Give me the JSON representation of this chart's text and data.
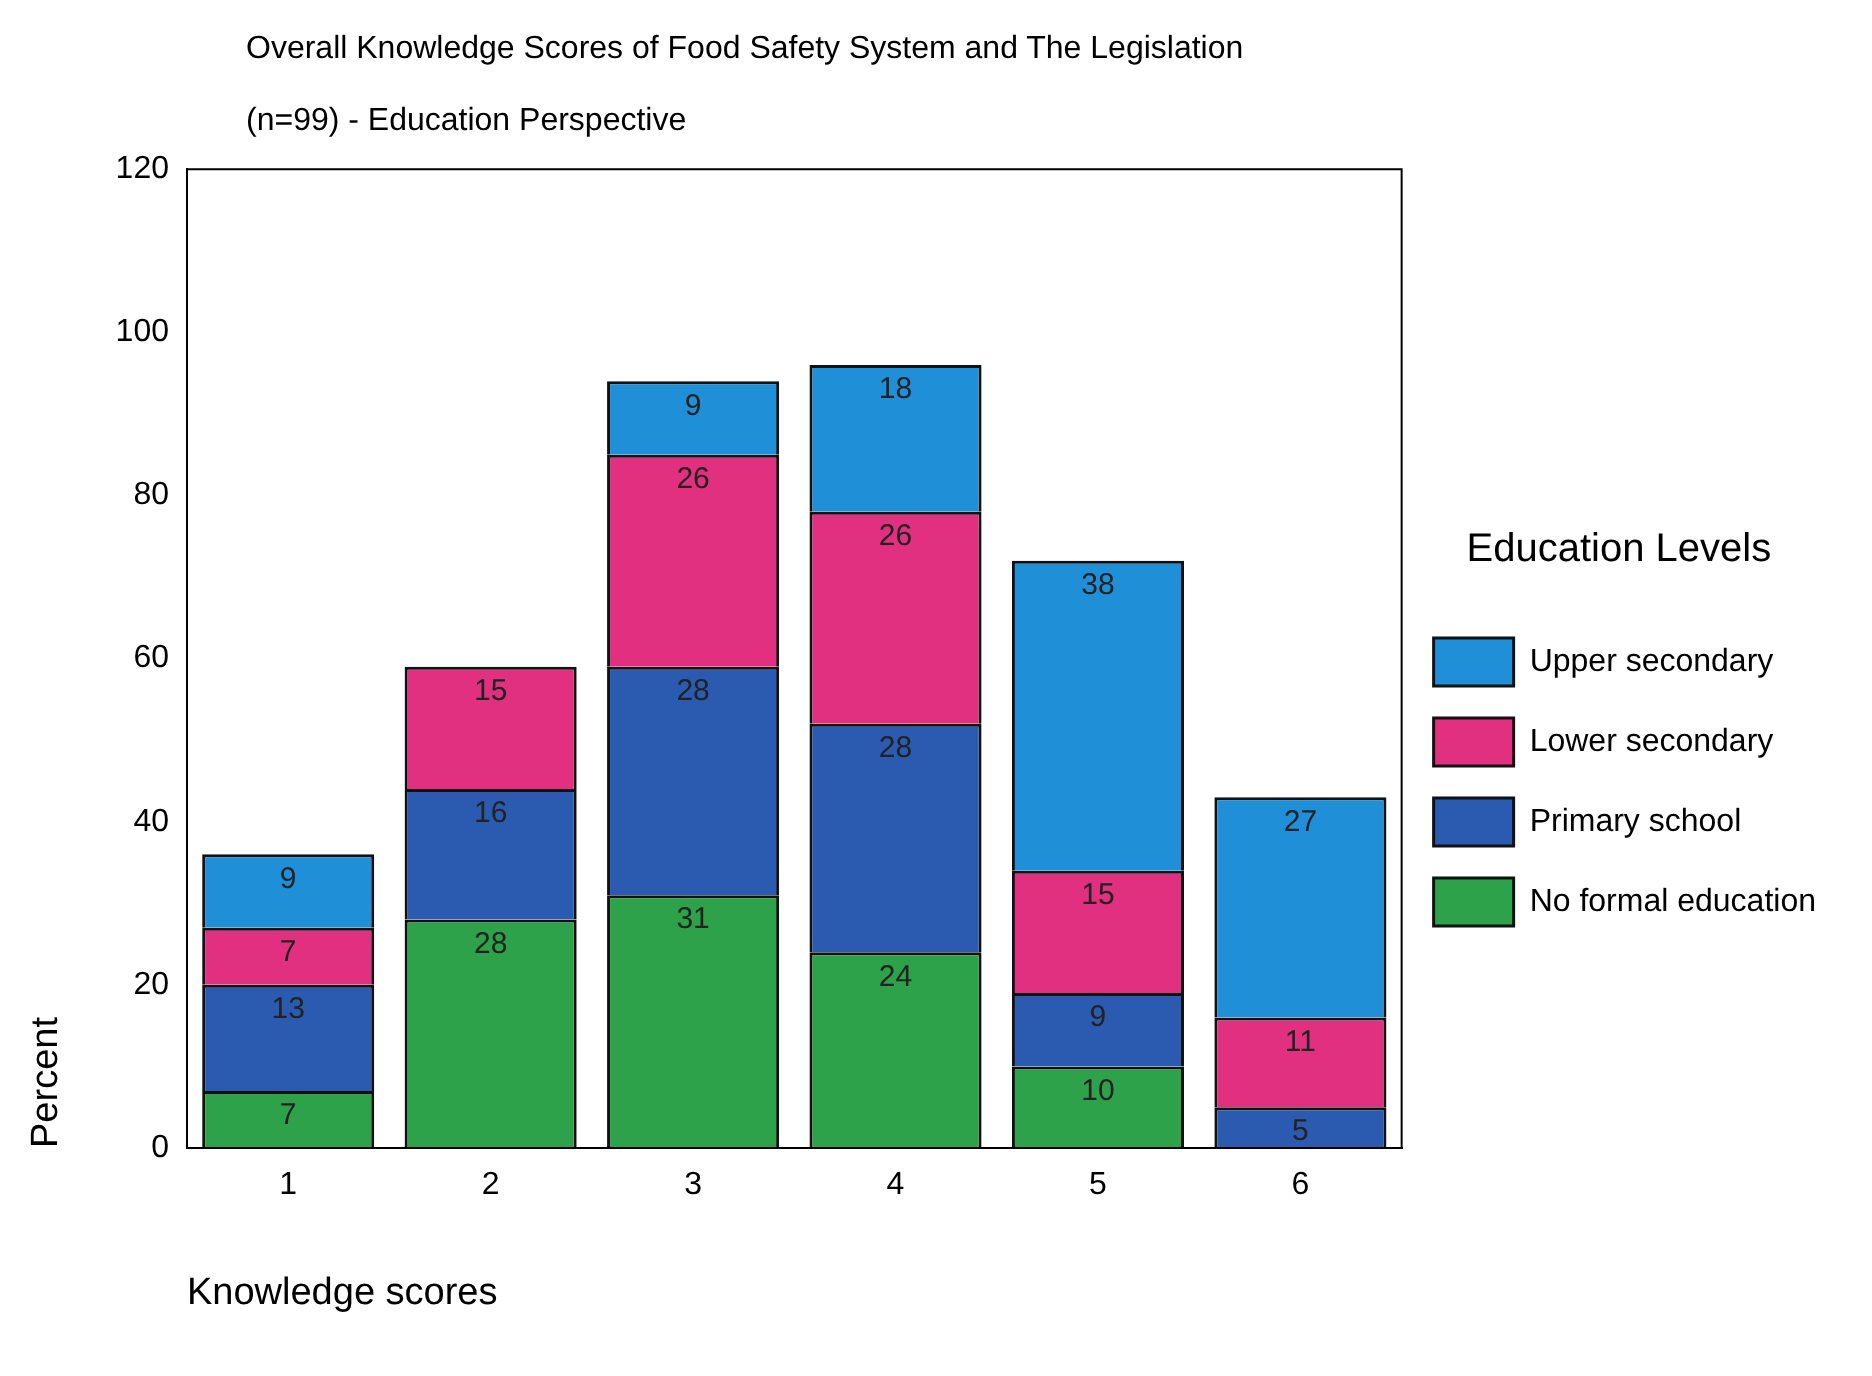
{
  "chart_data": {
    "type": "bar",
    "title": "Overall Knowledge Scores of Food Safety System and The Legislation",
    "subtitle": "(n=99) - Education Perspective",
    "xlabel": "Knowledge scores",
    "ylabel": "Percent",
    "legend_title": "Education Levels",
    "categories": [
      "1",
      "2",
      "3",
      "4",
      "5",
      "6"
    ],
    "stacked": true,
    "data_labels": true,
    "grid": false,
    "legend": "right",
    "ylim": [
      0,
      120
    ],
    "yticks": [
      0,
      20,
      40,
      60,
      80,
      100,
      120
    ],
    "series": [
      {
        "name": "No formal education",
        "color": "#2ea24a",
        "values": [
          7,
          28,
          31,
          24,
          10,
          null
        ]
      },
      {
        "name": "Primary school",
        "color": "#2a5bb0",
        "values": [
          13,
          16,
          28,
          28,
          9,
          5
        ]
      },
      {
        "name": "Lower secondary",
        "color": "#e0307f",
        "values": [
          7,
          15,
          26,
          26,
          15,
          11
        ]
      },
      {
        "name": "Upper secondary",
        "color": "#1f8fd8",
        "values": [
          9,
          null,
          9,
          18,
          38,
          27
        ]
      }
    ]
  }
}
